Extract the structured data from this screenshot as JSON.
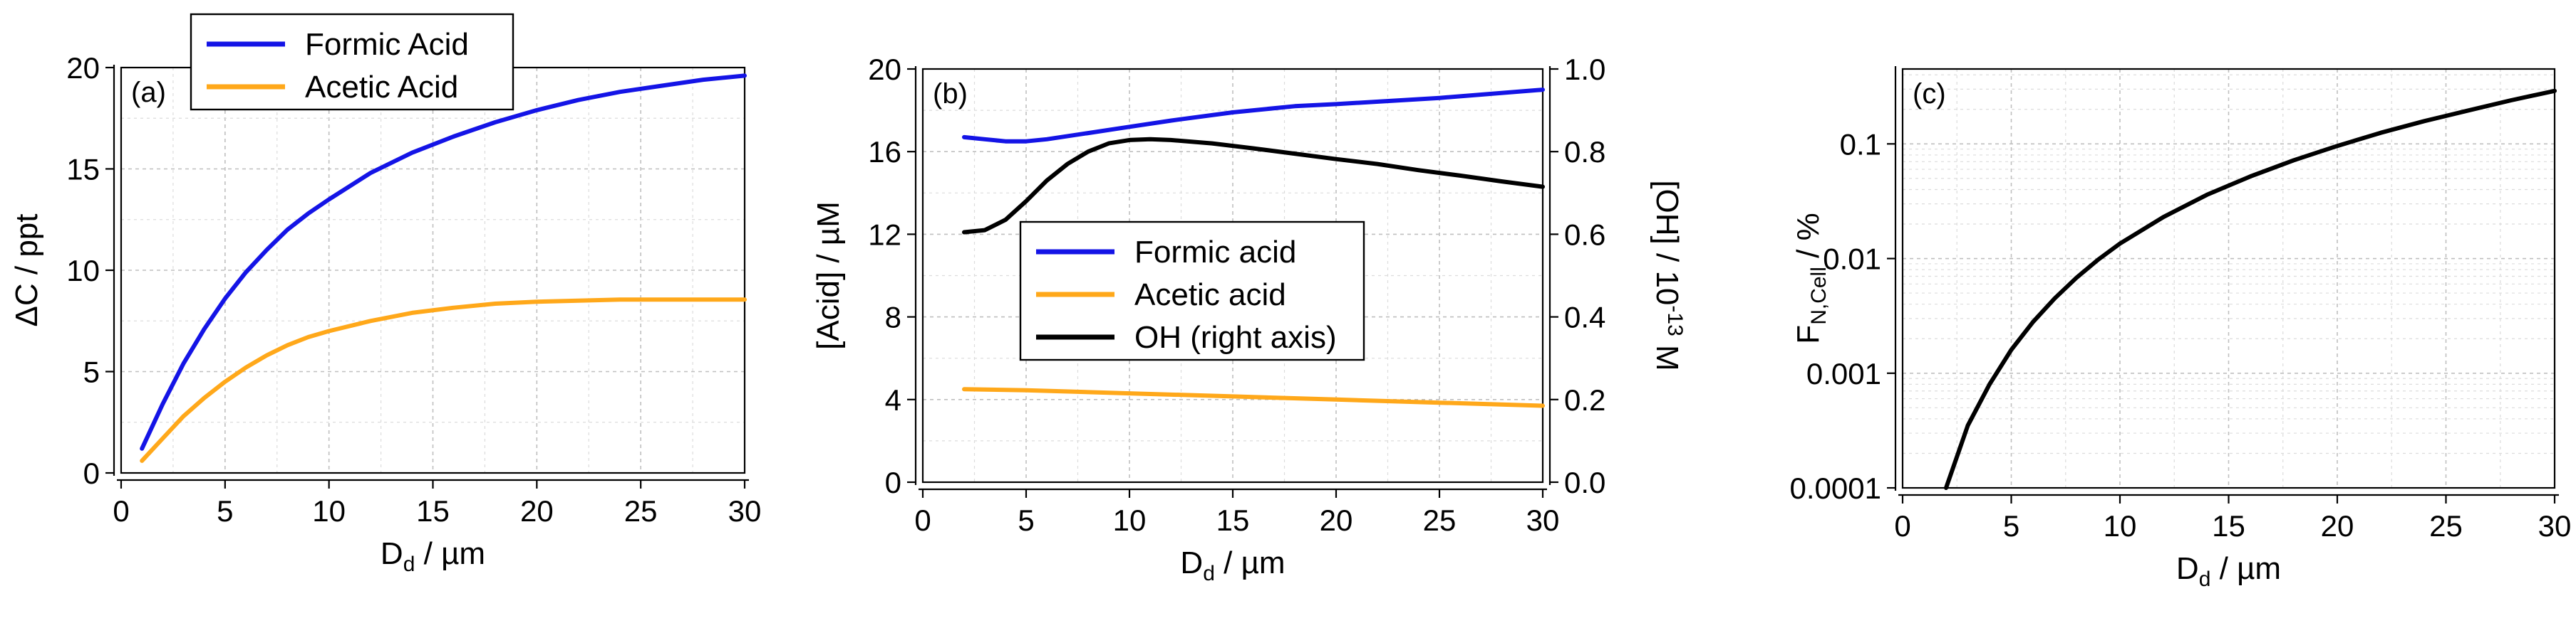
{
  "colors": {
    "formic": "#1414e6",
    "acetic": "#ffa81a",
    "oh": "#000000"
  },
  "chart_data": [
    {
      "panel": "(a)",
      "type": "line",
      "xlabel": "D",
      "xlabel_sub": "d",
      "xlabel_unit": " / µm",
      "ylabel": "ΔC / ppt",
      "xlim": [
        0,
        30
      ],
      "ylim": [
        0,
        20
      ],
      "xticks": [
        0,
        5,
        10,
        15,
        20,
        25,
        30
      ],
      "yticks": [
        0,
        5,
        10,
        15,
        20
      ],
      "legend": "top-center",
      "series": [
        {
          "name": "Formic Acid",
          "color": "#1414e6",
          "x": [
            1,
            2,
            3,
            4,
            5,
            6,
            7,
            8,
            9,
            10,
            12,
            14,
            16,
            18,
            20,
            22,
            24,
            26,
            28,
            30
          ],
          "y": [
            1.2,
            3.4,
            5.4,
            7.1,
            8.6,
            9.9,
            11.0,
            12.0,
            12.8,
            13.5,
            14.8,
            15.8,
            16.6,
            17.3,
            17.9,
            18.4,
            18.8,
            19.1,
            19.4,
            19.6
          ]
        },
        {
          "name": "Acetic Acid",
          "color": "#ffa81a",
          "x": [
            1,
            2,
            3,
            4,
            5,
            6,
            7,
            8,
            9,
            10,
            12,
            14,
            16,
            18,
            20,
            22,
            24,
            26,
            28,
            30
          ],
          "y": [
            0.6,
            1.7,
            2.8,
            3.7,
            4.5,
            5.2,
            5.8,
            6.3,
            6.7,
            7.0,
            7.5,
            7.9,
            8.15,
            8.35,
            8.45,
            8.5,
            8.55,
            8.55,
            8.55,
            8.55
          ]
        }
      ]
    },
    {
      "panel": "(b)",
      "type": "line",
      "xlabel": "D",
      "xlabel_sub": "d",
      "xlabel_unit": " / µm",
      "ylabel": "[Acid] / µM",
      "ylabel_right_main": "[OH] / 10",
      "ylabel_right_sup": "-13",
      "ylabel_right_end": " M",
      "xlim": [
        0,
        30
      ],
      "ylim": [
        0,
        20
      ],
      "ylim_right": [
        0.0,
        1.0
      ],
      "xticks": [
        0,
        5,
        10,
        15,
        20,
        25,
        30
      ],
      "yticks": [
        0,
        4,
        8,
        12,
        16,
        20
      ],
      "yticks_right": [
        "0.0",
        "0.2",
        "0.4",
        "0.6",
        "0.8",
        "1.0"
      ],
      "legend": "center",
      "series": [
        {
          "name": "Formic acid",
          "axis": "left",
          "color": "#1414e6",
          "x": [
            2,
            3,
            4,
            5,
            6,
            8,
            10,
            12,
            15,
            18,
            20,
            25,
            30
          ],
          "y": [
            16.7,
            16.6,
            16.5,
            16.5,
            16.6,
            16.9,
            17.2,
            17.5,
            17.9,
            18.2,
            18.3,
            18.6,
            19.0
          ]
        },
        {
          "name": "Acetic acid",
          "axis": "left",
          "color": "#ffa81a",
          "x": [
            2,
            5,
            10,
            15,
            20,
            25,
            30
          ],
          "y": [
            4.5,
            4.45,
            4.3,
            4.15,
            4.0,
            3.85,
            3.7
          ]
        },
        {
          "name": "OH (right axis)",
          "axis": "right",
          "color": "#000000",
          "x": [
            2,
            3,
            4,
            5,
            6,
            7,
            8,
            9,
            10,
            11,
            12,
            14,
            16,
            18,
            20,
            22,
            24,
            26,
            28,
            30
          ],
          "y": [
            0.605,
            0.61,
            0.635,
            0.68,
            0.73,
            0.77,
            0.8,
            0.82,
            0.828,
            0.83,
            0.828,
            0.82,
            0.808,
            0.795,
            0.782,
            0.77,
            0.755,
            0.742,
            0.728,
            0.715
          ]
        }
      ]
    },
    {
      "panel": "(c)",
      "type": "line",
      "xlabel": "D",
      "xlabel_sub": "d",
      "xlabel_unit": " / µm",
      "ylabel": "F",
      "ylabel_sub": "N,Cell",
      "ylabel_unit": " / %",
      "xlim": [
        0,
        30
      ],
      "ylim": [
        0.0001,
        0.45
      ],
      "yscale": "log",
      "xticks": [
        0,
        5,
        10,
        15,
        20,
        25,
        30
      ],
      "yticks": [
        0.0001,
        0.001,
        0.01,
        0.1
      ],
      "ytick_labels": [
        "0.0001",
        "0.001",
        "0.01",
        "0.1"
      ],
      "series": [
        {
          "name": "",
          "color": "#000000",
          "x": [
            2,
            3,
            4,
            5,
            6,
            7,
            8,
            9,
            10,
            12,
            14,
            16,
            18,
            20,
            22,
            24,
            26,
            28,
            30
          ],
          "y": [
            0.0001,
            0.00035,
            0.0008,
            0.0016,
            0.0028,
            0.0045,
            0.0068,
            0.0098,
            0.0135,
            0.023,
            0.036,
            0.052,
            0.072,
            0.096,
            0.125,
            0.158,
            0.195,
            0.24,
            0.29
          ]
        }
      ]
    }
  ]
}
